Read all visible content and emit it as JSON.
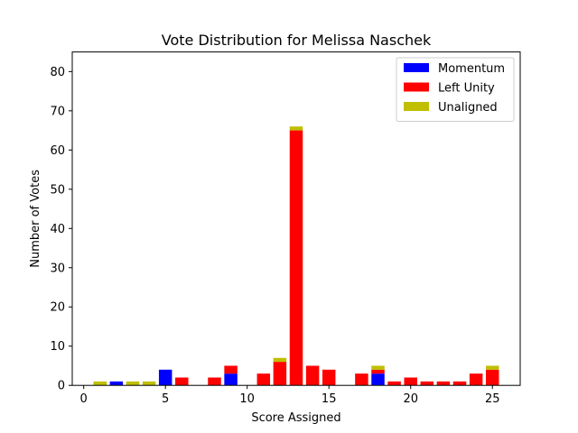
{
  "chart_data": {
    "type": "bar",
    "stacked": true,
    "title": "Vote Distribution for Melissa Naschek",
    "xlabel": "Score Assigned",
    "ylabel": "Number of Votes",
    "xlim": [
      -0.7,
      26.7
    ],
    "ylim": [
      0,
      85
    ],
    "xticks": [
      0,
      5,
      10,
      15,
      20,
      25
    ],
    "yticks": [
      0,
      10,
      20,
      30,
      40,
      50,
      60,
      70,
      80
    ],
    "grid": false,
    "legend_position": "top-right",
    "x": [
      1,
      2,
      3,
      4,
      5,
      6,
      7,
      8,
      9,
      10,
      11,
      12,
      13,
      14,
      15,
      16,
      17,
      18,
      19,
      20,
      21,
      22,
      23,
      24,
      25
    ],
    "series": [
      {
        "name": "Momentum",
        "color": "#0000ff",
        "values": [
          0,
          1,
          0,
          0,
          4,
          0,
          0,
          0,
          3,
          0,
          0,
          0,
          0,
          0,
          0,
          0,
          0,
          3,
          0,
          0,
          0,
          0,
          0,
          0,
          0
        ]
      },
      {
        "name": "Left Unity",
        "color": "#ff0000",
        "values": [
          0,
          0,
          0,
          0,
          0,
          2,
          0,
          2,
          2,
          0,
          3,
          6,
          65,
          5,
          4,
          0,
          3,
          1,
          1,
          2,
          1,
          1,
          1,
          3,
          4
        ]
      },
      {
        "name": "Unaligned",
        "color": "#bfbf00",
        "values": [
          1,
          0,
          1,
          1,
          0,
          0,
          0,
          0,
          0,
          0,
          0,
          1,
          1,
          0,
          0,
          0,
          0,
          1,
          0,
          0,
          0,
          0,
          0,
          0,
          1
        ]
      }
    ]
  }
}
